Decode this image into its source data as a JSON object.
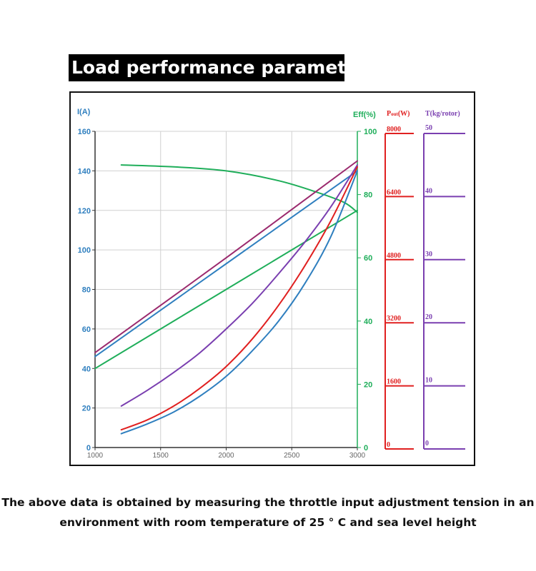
{
  "title": "Load performance parameters",
  "footnote": {
    "line1": "The above data is obtained by measuring the throttle input adjustment tension in an",
    "line2": "environment with room temperature of 25 ° C and sea level height"
  },
  "colors": {
    "current_axis": "#2f7fbf",
    "eff_axis": "#1fae5a",
    "pout_axis": "#e02020",
    "thrust_axis": "#7a3fb0",
    "grid": "#d0d0d0"
  },
  "chart_data": {
    "type": "line",
    "x": [
      1200,
      1400,
      1600,
      1800,
      2000,
      2200,
      2400,
      2600,
      2800,
      3000
    ],
    "xlim": [
      1000,
      3000
    ],
    "xticks": [
      "1000",
      "1500",
      "2000",
      "2500",
      "3000"
    ],
    "grid": true,
    "axes": {
      "left": {
        "label": "I(A)",
        "range": [
          0,
          160
        ],
        "ticks": [
          "0",
          "20",
          "40",
          "60",
          "80",
          "100",
          "120",
          "140",
          "160"
        ]
      },
      "eff": {
        "label": "Eff(%)",
        "range": [
          0,
          100
        ],
        "ticks": [
          "0",
          "20",
          "40",
          "60",
          "80",
          "100"
        ]
      },
      "pout": {
        "label_main": "P",
        "label_sub": "out",
        "label_unit": "(W)",
        "range": [
          0,
          8000
        ],
        "ticks": [
          "0",
          "1600",
          "3200",
          "4800",
          "6400",
          "8000"
        ]
      },
      "thrust": {
        "label": "T(kg/rotor)",
        "range": [
          0,
          50
        ],
        "ticks": [
          "0",
          "10",
          "20",
          "30",
          "40",
          "50"
        ]
      }
    },
    "series": [
      {
        "color": "#1fae5a",
        "axis": "left",
        "x": [
          1200,
          1600,
          2000,
          2400,
          2700,
          2900,
          3000
        ],
        "values": [
          143,
          142,
          140,
          135,
          129,
          124,
          119
        ]
      },
      {
        "color": "#1fae5a",
        "axis": "left",
        "x": [
          1000,
          2000,
          3000
        ],
        "values": [
          40,
          80,
          120
        ]
      },
      {
        "color": "#9b2a6e",
        "axis": "left",
        "x": [
          1000,
          2000,
          3000
        ],
        "values": [
          48,
          96,
          145
        ]
      },
      {
        "color": "#2f7fbf",
        "axis": "left",
        "x": [
          1000,
          2000,
          3000
        ],
        "values": [
          46,
          93,
          140
        ]
      },
      {
        "color": "#7a3fb0",
        "axis": "left",
        "x": [
          1200,
          1400,
          1600,
          1800,
          2000,
          2200,
          2400,
          2600,
          2800,
          3000
        ],
        "values": [
          21,
          29,
          38,
          48,
          60,
          73,
          88,
          104,
          122,
          143
        ]
      },
      {
        "color": "#e02020",
        "axis": "left",
        "x": [
          1200,
          1400,
          1600,
          1800,
          2000,
          2200,
          2400,
          2600,
          2800,
          3000
        ],
        "values": [
          9,
          14,
          21,
          30,
          41,
          55,
          72,
          92,
          115,
          142
        ]
      },
      {
        "color": "#2f7fbf",
        "axis": "left",
        "x": [
          1200,
          1400,
          1600,
          1800,
          2000,
          2200,
          2400,
          2600,
          2800,
          3000
        ],
        "values": [
          7,
          12,
          18,
          26,
          36,
          49,
          64,
          83,
          107,
          140
        ]
      }
    ]
  }
}
